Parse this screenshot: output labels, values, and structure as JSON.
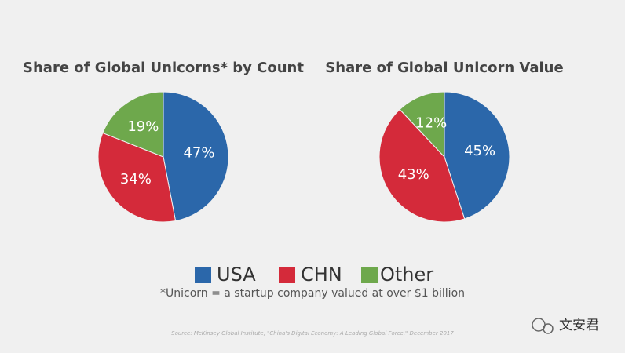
{
  "chart_data": [
    {
      "type": "pie",
      "title": "Share of Global Unicorns* by Count",
      "categories": [
        "USA",
        "CHN",
        "Other"
      ],
      "values": [
        47,
        34,
        19
      ],
      "value_labels": [
        "47%",
        "34%",
        "19%"
      ],
      "colors": [
        "#2b67aa",
        "#d42a3a",
        "#6ea84c"
      ]
    },
    {
      "type": "pie",
      "title": "Share of Global Unicorn Value",
      "categories": [
        "USA",
        "CHN",
        "Other"
      ],
      "values": [
        45,
        43,
        12
      ],
      "value_labels": [
        "45%",
        "43%",
        "12%"
      ],
      "colors": [
        "#2b67aa",
        "#d42a3a",
        "#6ea84c"
      ]
    }
  ],
  "footnote": "*Unicorn = a startup company valued at over $1 billion",
  "source": "Source: McKinsey Global Institute, \"China's Digital Economy: A Leading Global Force,\" December 2017",
  "watermark": "文安君"
}
